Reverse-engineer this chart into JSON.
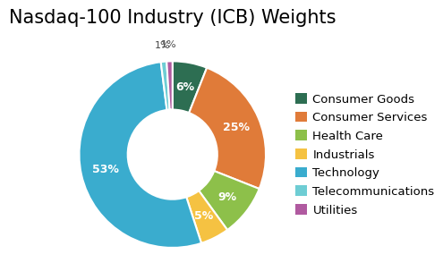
{
  "title": "Nasdaq-100 Industry (ICB) Weights",
  "labels": [
    "Consumer Goods",
    "Consumer Services",
    "Health Care",
    "Industrials",
    "Technology",
    "Telecommunications",
    "Utilities"
  ],
  "values": [
    6,
    25,
    9,
    5,
    53,
    1,
    1
  ],
  "colors": [
    "#2d6e52",
    "#e07b39",
    "#8dc04a",
    "#f5c242",
    "#3aacce",
    "#6ecdd4",
    "#b05aa0"
  ],
  "pct_labels": [
    "6%",
    "25%",
    "9%",
    "5%",
    "53%",
    "1%",
    "1%"
  ],
  "title_fontsize": 15,
  "legend_fontsize": 9.5,
  "background_color": "#ffffff",
  "label_color_white": [
    "Consumer Goods",
    "Consumer Services",
    "Health Care",
    "Industrials",
    "Technology"
  ],
  "label_color_dark": [
    "Telecommunications",
    "Utilities"
  ]
}
